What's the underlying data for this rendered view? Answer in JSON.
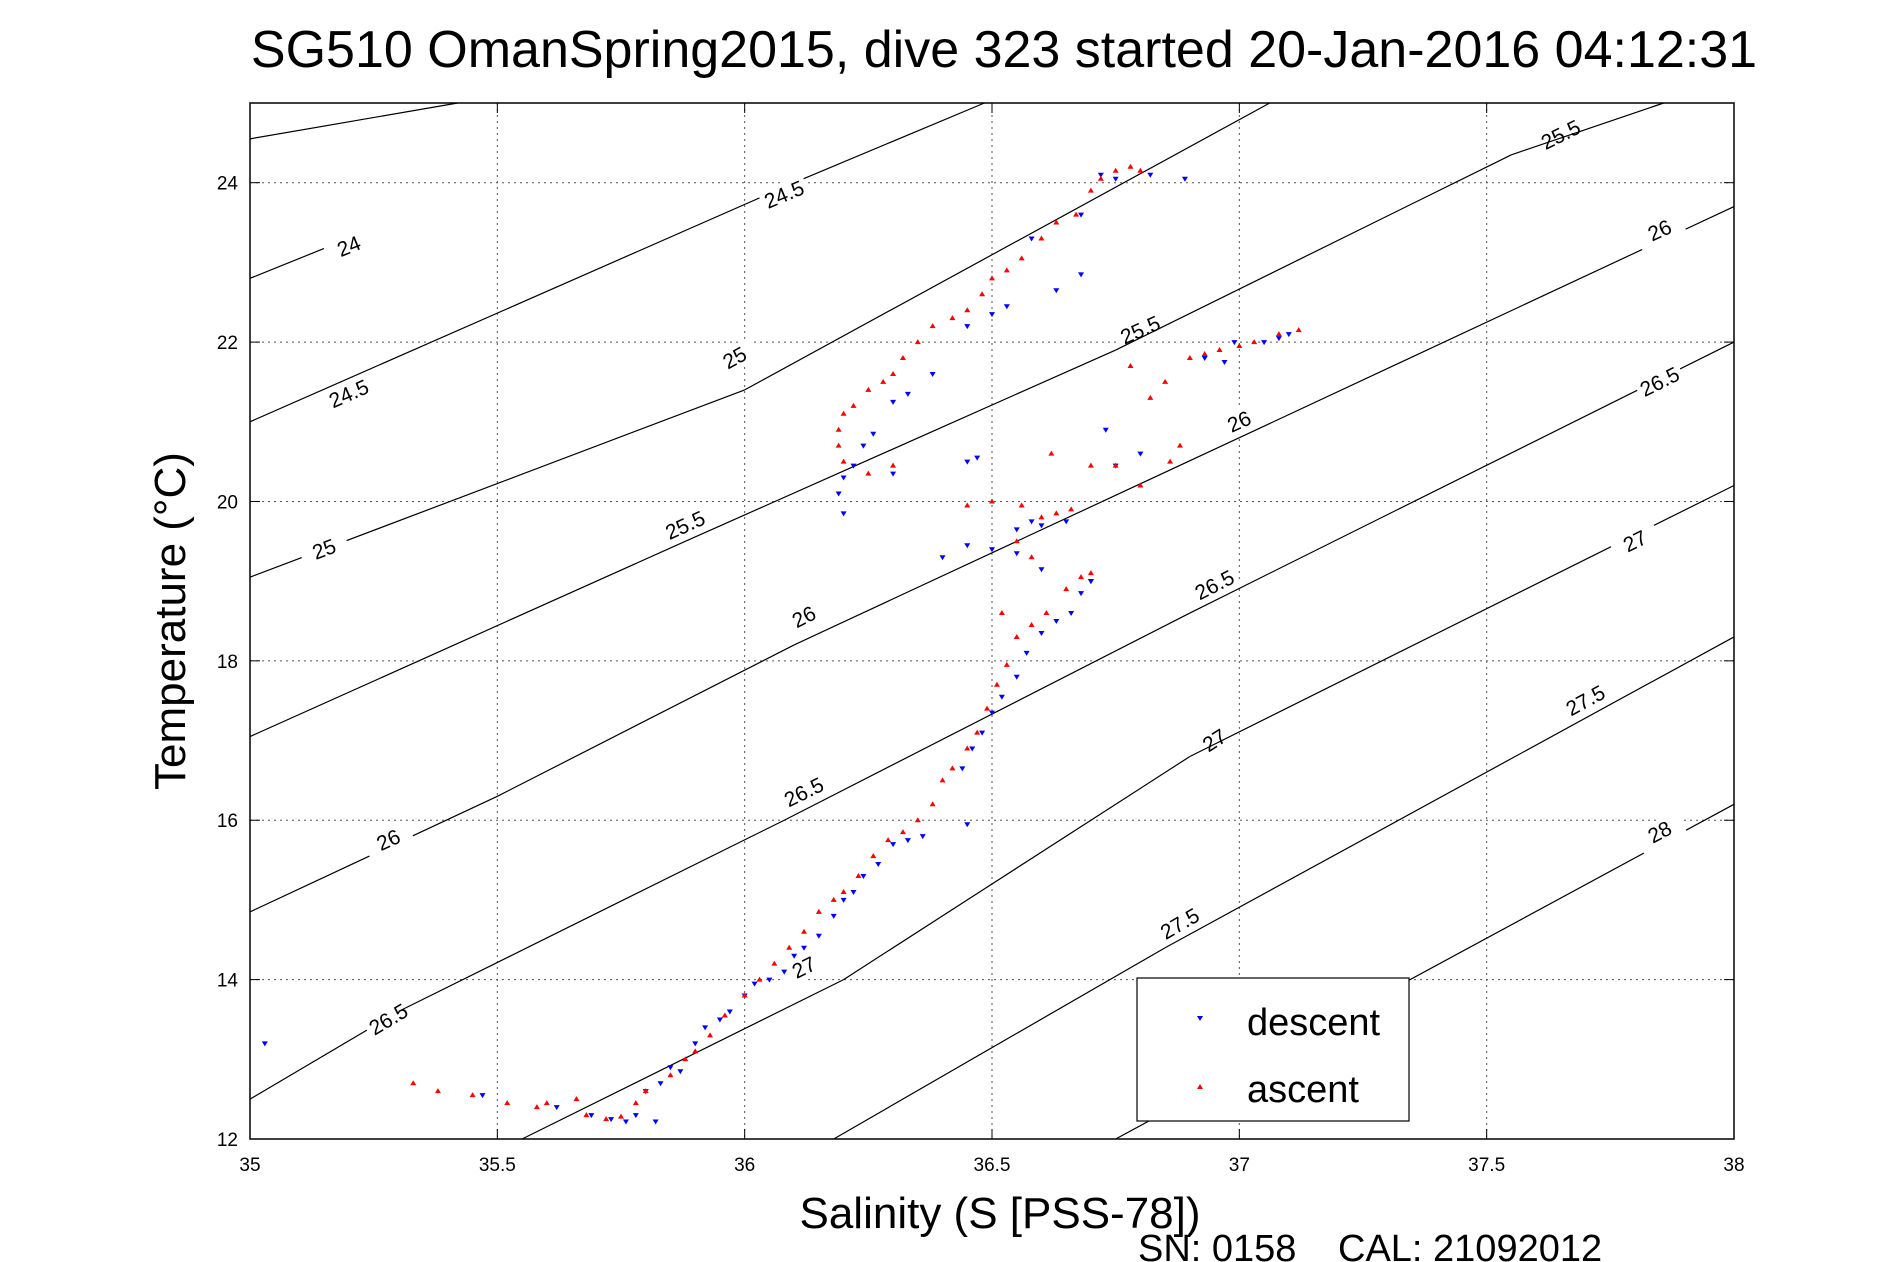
{
  "chart_data": {
    "type": "scatter",
    "title": "SG510 OmanSpring2015, dive 323 started 20-Jan-2016 04:12:31",
    "xlabel": "Salinity (S [PSS-78])",
    "ylabel": "Temperature (°C)",
    "xlim": [
      35,
      38
    ],
    "ylim": [
      12,
      25
    ],
    "xticks": [
      "35",
      "35.5",
      "36",
      "36.5",
      "37",
      "37.5",
      "38"
    ],
    "yticks": [
      "12",
      "14",
      "16",
      "18",
      "20",
      "22",
      "24"
    ],
    "grid": true,
    "legend_position": "bottom-right",
    "series": [
      {
        "name": "descent",
        "color": "#0000ff",
        "marker": "triangle-down",
        "points": [
          [
            35.03,
            13.2
          ],
          [
            35.47,
            12.55
          ],
          [
            35.62,
            12.4
          ],
          [
            35.69,
            12.3
          ],
          [
            35.73,
            12.25
          ],
          [
            35.76,
            12.22
          ],
          [
            35.78,
            12.3
          ],
          [
            35.82,
            12.22
          ],
          [
            35.8,
            12.6
          ],
          [
            35.83,
            12.7
          ],
          [
            35.85,
            12.9
          ],
          [
            35.87,
            12.85
          ],
          [
            35.9,
            13.2
          ],
          [
            35.92,
            13.4
          ],
          [
            35.95,
            13.5
          ],
          [
            35.97,
            13.6
          ],
          [
            36.0,
            13.8
          ],
          [
            36.02,
            13.95
          ],
          [
            36.05,
            14.0
          ],
          [
            36.08,
            14.1
          ],
          [
            36.1,
            14.3
          ],
          [
            36.12,
            14.4
          ],
          [
            36.15,
            14.55
          ],
          [
            36.18,
            14.8
          ],
          [
            36.2,
            15.0
          ],
          [
            36.22,
            15.1
          ],
          [
            36.24,
            15.3
          ],
          [
            36.27,
            15.45
          ],
          [
            36.3,
            15.7
          ],
          [
            36.33,
            15.75
          ],
          [
            36.36,
            15.8
          ],
          [
            36.45,
            15.95
          ],
          [
            36.44,
            16.65
          ],
          [
            36.46,
            16.9
          ],
          [
            36.48,
            17.1
          ],
          [
            36.5,
            17.35
          ],
          [
            36.52,
            17.55
          ],
          [
            36.55,
            17.8
          ],
          [
            36.57,
            18.1
          ],
          [
            36.6,
            18.35
          ],
          [
            36.63,
            18.5
          ],
          [
            36.66,
            18.6
          ],
          [
            36.68,
            18.85
          ],
          [
            36.7,
            19.0
          ],
          [
            36.6,
            19.15
          ],
          [
            36.55,
            19.35
          ],
          [
            36.5,
            19.4
          ],
          [
            36.45,
            19.45
          ],
          [
            36.4,
            19.3
          ],
          [
            36.55,
            19.65
          ],
          [
            36.6,
            19.7
          ],
          [
            36.65,
            19.75
          ],
          [
            36.47,
            20.55
          ],
          [
            36.45,
            20.5
          ],
          [
            36.3,
            20.35
          ],
          [
            36.2,
            19.85
          ],
          [
            36.19,
            20.1
          ],
          [
            36.2,
            20.3
          ],
          [
            36.22,
            20.45
          ],
          [
            36.24,
            20.7
          ],
          [
            36.26,
            20.85
          ],
          [
            36.3,
            21.25
          ],
          [
            36.33,
            21.35
          ],
          [
            36.38,
            21.6
          ],
          [
            36.45,
            22.2
          ],
          [
            36.5,
            22.35
          ],
          [
            36.53,
            22.45
          ],
          [
            36.63,
            22.65
          ],
          [
            36.68,
            22.85
          ],
          [
            36.58,
            23.3
          ],
          [
            36.68,
            23.6
          ],
          [
            36.72,
            24.1
          ],
          [
            36.75,
            24.05
          ],
          [
            36.82,
            24.1
          ],
          [
            36.89,
            24.05
          ],
          [
            36.93,
            21.8
          ],
          [
            36.97,
            21.75
          ],
          [
            36.99,
            22.0
          ],
          [
            37.05,
            22.0
          ],
          [
            37.08,
            22.05
          ],
          [
            37.1,
            22.1
          ],
          [
            36.73,
            20.9
          ],
          [
            36.8,
            20.6
          ],
          [
            36.75,
            20.45
          ],
          [
            36.58,
            19.75
          ],
          [
            36.7,
            19.0
          ]
        ]
      },
      {
        "name": "ascent",
        "color": "#ff0000",
        "marker": "triangle-up",
        "points": [
          [
            35.33,
            12.7
          ],
          [
            35.38,
            12.6
          ],
          [
            35.45,
            12.55
          ],
          [
            35.52,
            12.45
          ],
          [
            35.58,
            12.4
          ],
          [
            35.6,
            12.45
          ],
          [
            35.66,
            12.5
          ],
          [
            35.68,
            12.3
          ],
          [
            35.72,
            12.25
          ],
          [
            35.75,
            12.28
          ],
          [
            35.78,
            12.45
          ],
          [
            35.8,
            12.6
          ],
          [
            35.85,
            12.8
          ],
          [
            35.88,
            13.0
          ],
          [
            35.9,
            13.1
          ],
          [
            35.93,
            13.3
          ],
          [
            35.96,
            13.55
          ],
          [
            36.0,
            13.8
          ],
          [
            36.03,
            14.0
          ],
          [
            36.06,
            14.2
          ],
          [
            36.09,
            14.4
          ],
          [
            36.12,
            14.6
          ],
          [
            36.15,
            14.85
          ],
          [
            36.18,
            15.0
          ],
          [
            36.2,
            15.1
          ],
          [
            36.23,
            15.3
          ],
          [
            36.26,
            15.55
          ],
          [
            36.29,
            15.75
          ],
          [
            36.32,
            15.85
          ],
          [
            36.35,
            16.0
          ],
          [
            36.38,
            16.2
          ],
          [
            36.4,
            16.5
          ],
          [
            36.42,
            16.65
          ],
          [
            36.45,
            16.9
          ],
          [
            36.47,
            17.1
          ],
          [
            36.49,
            17.4
          ],
          [
            36.51,
            17.7
          ],
          [
            36.53,
            17.95
          ],
          [
            36.55,
            18.3
          ],
          [
            36.58,
            18.45
          ],
          [
            36.61,
            18.6
          ],
          [
            36.65,
            18.9
          ],
          [
            36.68,
            19.05
          ],
          [
            36.7,
            19.1
          ],
          [
            36.58,
            19.3
          ],
          [
            36.55,
            19.5
          ],
          [
            36.6,
            19.8
          ],
          [
            36.63,
            19.85
          ],
          [
            36.66,
            19.9
          ],
          [
            36.62,
            20.6
          ],
          [
            36.7,
            20.45
          ],
          [
            36.5,
            20.0
          ],
          [
            36.45,
            19.95
          ],
          [
            36.3,
            20.45
          ],
          [
            36.25,
            20.35
          ],
          [
            36.2,
            20.5
          ],
          [
            36.19,
            20.7
          ],
          [
            36.19,
            20.9
          ],
          [
            36.2,
            21.1
          ],
          [
            36.22,
            21.2
          ],
          [
            36.25,
            21.4
          ],
          [
            36.28,
            21.5
          ],
          [
            36.3,
            21.6
          ],
          [
            36.32,
            21.8
          ],
          [
            36.35,
            22.0
          ],
          [
            36.38,
            22.2
          ],
          [
            36.42,
            22.3
          ],
          [
            36.45,
            22.4
          ],
          [
            36.48,
            22.6
          ],
          [
            36.5,
            22.8
          ],
          [
            36.53,
            22.9
          ],
          [
            36.56,
            23.05
          ],
          [
            36.6,
            23.3
          ],
          [
            36.63,
            23.5
          ],
          [
            36.67,
            23.6
          ],
          [
            36.7,
            23.9
          ],
          [
            36.72,
            24.05
          ],
          [
            36.75,
            24.15
          ],
          [
            36.78,
            24.2
          ],
          [
            36.8,
            24.15
          ],
          [
            36.85,
            21.5
          ],
          [
            36.9,
            21.8
          ],
          [
            36.93,
            21.85
          ],
          [
            36.96,
            21.9
          ],
          [
            37.0,
            21.95
          ],
          [
            37.03,
            22.0
          ],
          [
            37.08,
            22.1
          ],
          [
            37.12,
            22.15
          ],
          [
            36.82,
            21.3
          ],
          [
            36.88,
            20.7
          ],
          [
            36.8,
            20.2
          ],
          [
            36.75,
            20.45
          ],
          [
            36.78,
            21.7
          ],
          [
            36.86,
            20.5
          ],
          [
            36.56,
            19.95
          ],
          [
            36.52,
            18.6
          ]
        ]
      }
    ],
    "isopycnals": [
      {
        "label": "24",
        "xa": 35.0,
        "ya": 22.8,
        "xb": 35.2,
        "yb": 23.3,
        "lx": 35.2,
        "ly": 23.2
      },
      {
        "label": "24.5",
        "xa": 35.0,
        "ya": 24.55,
        "xb": 35.7,
        "yb": 25.3,
        "lx": null,
        "ly": null
      },
      {
        "label": "24.5",
        "xa": 35.0,
        "ya": 21.0,
        "xb": 36.1,
        "yb": 24.0,
        "lx": 35.2,
        "ly": 21.35
      },
      {
        "label": "24.5",
        "xa": 36.1,
        "ya": 24.0,
        "xb": 36.6,
        "yb": 25.3,
        "lx": 36.08,
        "ly": 23.85
      },
      {
        "label": "25",
        "xa": 35.0,
        "ya": 19.05,
        "xb": 36.0,
        "yb": 21.4,
        "lx": 35.15,
        "ly": 19.4
      },
      {
        "label": "25",
        "xa": 36.0,
        "ya": 21.4,
        "xb": 37.15,
        "yb": 25.3,
        "lx": 35.98,
        "ly": 21.8
      },
      {
        "label": "25.5",
        "xa": 35.0,
        "ya": 17.05,
        "xb": 35.88,
        "yb": 19.5,
        "lx": 35.88,
        "ly": 19.7
      },
      {
        "label": "25.5",
        "xa": 35.88,
        "ya": 19.5,
        "xb": 36.75,
        "yb": 21.9,
        "lx": 36.8,
        "ly": 22.15
      },
      {
        "label": "25.5",
        "xa": 36.75,
        "ya": 21.9,
        "xb": 37.55,
        "yb": 24.35,
        "lx": 37.65,
        "ly": 24.6
      },
      {
        "label": "25.5",
        "xa": 37.55,
        "ya": 24.35,
        "xb": 38.0,
        "yb": 25.3,
        "lx": null,
        "ly": null
      },
      {
        "label": "26",
        "xa": 35.0,
        "ya": 14.85,
        "xb": 35.5,
        "yb": 16.3,
        "lx": 35.28,
        "ly": 15.75
      },
      {
        "label": "26",
        "xa": 35.5,
        "ya": 16.3,
        "xb": 36.1,
        "yb": 18.2,
        "lx": 36.12,
        "ly": 18.55
      },
      {
        "label": "26",
        "xa": 36.1,
        "ya": 18.2,
        "xb": 37.0,
        "yb": 20.8,
        "lx": 37.0,
        "ly": 21.0
      },
      {
        "label": "26",
        "xa": 37.0,
        "ya": 20.8,
        "xb": 38.0,
        "yb": 23.7,
        "lx": 37.85,
        "ly": 23.4
      },
      {
        "label": "26.5",
        "xa": 35.0,
        "ya": 12.5,
        "xb": 35.3,
        "yb": 13.6,
        "lx": 35.28,
        "ly": 13.5
      },
      {
        "label": "26.5",
        "xa": 35.3,
        "ya": 13.6,
        "xb": 36.08,
        "yb": 16.0,
        "lx": 36.12,
        "ly": 16.35
      },
      {
        "label": "26.5",
        "xa": 36.08,
        "ya": 16.0,
        "xb": 36.9,
        "yb": 18.6,
        "lx": 36.95,
        "ly": 18.95
      },
      {
        "label": "26.5",
        "xa": 36.9,
        "ya": 18.6,
        "xb": 38.0,
        "yb": 22.0,
        "lx": 37.85,
        "ly": 21.5
      },
      {
        "label": "27",
        "xa": 35.55,
        "ya": 12.0,
        "xb": 36.2,
        "yb": 14.0,
        "lx": 36.12,
        "ly": 14.15
      },
      {
        "label": "27",
        "xa": 36.2,
        "ya": 14.0,
        "xb": 36.9,
        "yb": 16.8,
        "lx": 36.95,
        "ly": 17.0
      },
      {
        "label": "27",
        "xa": 36.9,
        "ya": 16.8,
        "xb": 38.0,
        "yb": 20.2,
        "lx": 37.8,
        "ly": 19.5
      },
      {
        "label": "27.5",
        "xa": 36.18,
        "ya": 12.0,
        "xb": 36.85,
        "yb": 14.4,
        "lx": 36.88,
        "ly": 14.7
      },
      {
        "label": "27.5",
        "xa": 36.85,
        "ya": 14.4,
        "xb": 38.0,
        "yb": 18.3,
        "lx": 37.7,
        "ly": 17.5
      },
      {
        "label": "28",
        "xa": 36.75,
        "ya": 12.0,
        "xb": 38.0,
        "yb": 16.2,
        "lx": 37.85,
        "ly": 15.85
      }
    ]
  },
  "footer": {
    "serial": "SN: 0158",
    "calibration": "CAL: 21092012"
  }
}
